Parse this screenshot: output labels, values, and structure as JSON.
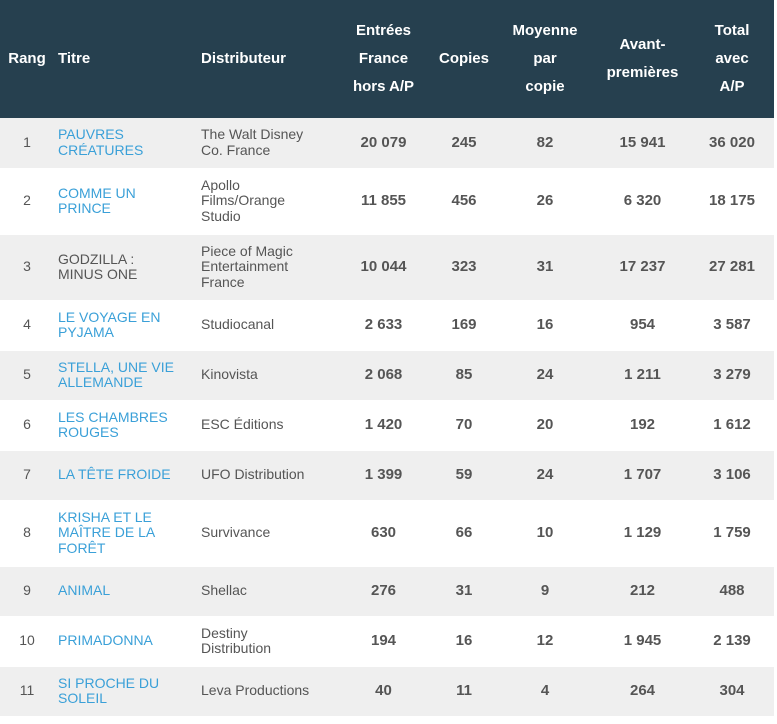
{
  "colors": {
    "header_bg": "#26404f",
    "link": "#3aa0d8",
    "text": "#555555",
    "row_alt": "#efefef"
  },
  "headers": {
    "rang": "Rang",
    "titre": "Titre",
    "distributeur": "Distributeur",
    "entrees": [
      "Entrées",
      "France",
      "hors A/P"
    ],
    "copies": "Copies",
    "moyenne": [
      "Moyenne",
      "par",
      "copie"
    ],
    "avant": [
      "Avant-",
      "premières"
    ],
    "total": [
      "Total",
      "avec",
      "A/P"
    ]
  },
  "rows": [
    {
      "rang": "1",
      "titre": [
        "PAUVRES",
        "CRÉATURES"
      ],
      "link": true,
      "distributeur": [
        "The Walt Disney",
        "Co. France"
      ],
      "entrees": "20 079",
      "copies": "245",
      "moyenne": "82",
      "avant": "15 941",
      "total": "36 020"
    },
    {
      "rang": "2",
      "titre": [
        "COMME UN",
        "PRINCE"
      ],
      "link": true,
      "distributeur": [
        "Apollo",
        "Films/Orange",
        "Studio"
      ],
      "entrees": "11 855",
      "copies": "456",
      "moyenne": "26",
      "avant": "6 320",
      "total": "18 175"
    },
    {
      "rang": "3",
      "titre": [
        "GODZILLA :",
        "MINUS ONE"
      ],
      "link": false,
      "distributeur": [
        "Piece of Magic",
        "Entertainment",
        "France"
      ],
      "entrees": "10 044",
      "copies": "323",
      "moyenne": "31",
      "avant": "17 237",
      "total": "27 281"
    },
    {
      "rang": "4",
      "titre": [
        "LE VOYAGE EN",
        "PYJAMA"
      ],
      "link": true,
      "distributeur": [
        "Studiocanal"
      ],
      "entrees": "2 633",
      "copies": "169",
      "moyenne": "16",
      "avant": "954",
      "total": "3 587"
    },
    {
      "rang": "5",
      "titre": [
        "STELLA, UNE VIE",
        "ALLEMANDE"
      ],
      "link": true,
      "distributeur": [
        "Kinovista"
      ],
      "entrees": "2 068",
      "copies": "85",
      "moyenne": "24",
      "avant": "1 211",
      "total": "3 279"
    },
    {
      "rang": "6",
      "titre": [
        "LES CHAMBRES",
        "ROUGES"
      ],
      "link": true,
      "distributeur": [
        "ESC Éditions"
      ],
      "entrees": "1 420",
      "copies": "70",
      "moyenne": "20",
      "avant": "192",
      "total": "1 612"
    },
    {
      "rang": "7",
      "titre": [
        "LA TÊTE FROIDE"
      ],
      "link": true,
      "distributeur": [
        "UFO Distribution"
      ],
      "entrees": "1 399",
      "copies": "59",
      "moyenne": "24",
      "avant": "1 707",
      "total": "3 106"
    },
    {
      "rang": "8",
      "titre": [
        "KRISHA ET LE",
        "MAÎTRE DE LA",
        "FORÊT"
      ],
      "link": true,
      "distributeur": [
        "Survivance"
      ],
      "entrees": "630",
      "copies": "66",
      "moyenne": "10",
      "avant": "1 129",
      "total": "1 759"
    },
    {
      "rang": "9",
      "titre": [
        "ANIMAL"
      ],
      "link": true,
      "distributeur": [
        "Shellac"
      ],
      "entrees": "276",
      "copies": "31",
      "moyenne": "9",
      "avant": "212",
      "total": "488"
    },
    {
      "rang": "10",
      "titre": [
        "PRIMADONNA"
      ],
      "link": true,
      "distributeur": [
        "Destiny",
        "Distribution"
      ],
      "entrees": "194",
      "copies": "16",
      "moyenne": "12",
      "avant": "1 945",
      "total": "2 139"
    },
    {
      "rang": "11",
      "titre": [
        "SI PROCHE DU",
        "SOLEIL"
      ],
      "link": true,
      "distributeur": [
        "Leva Productions"
      ],
      "entrees": "40",
      "copies": "11",
      "moyenne": "4",
      "avant": "264",
      "total": "304"
    }
  ]
}
